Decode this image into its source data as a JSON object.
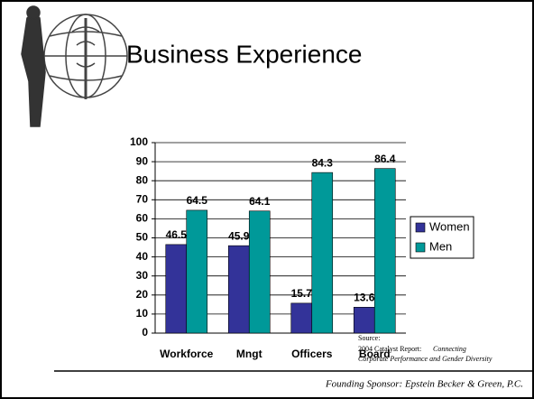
{
  "chart_data": {
    "type": "bar",
    "title": "Business Experience",
    "categories": [
      "Workforce",
      "Mngt",
      "Officers",
      "Board"
    ],
    "series": [
      {
        "name": "Women",
        "color": "#333399",
        "values": [
          46.5,
          45.9,
          15.7,
          13.6
        ]
      },
      {
        "name": "Men",
        "color": "#009999",
        "values": [
          64.5,
          64.1,
          84.3,
          86.4
        ]
      }
    ],
    "ylim": [
      0,
      100
    ],
    "yticks": [
      0,
      10,
      20,
      30,
      40,
      50,
      60,
      70,
      80,
      90,
      100
    ],
    "grid": true,
    "legend": "right",
    "source": [
      "Source:",
      "2004 Catalyst Report:",
      "Connecting",
      "Corporate Performance and Gender Diversity"
    ],
    "footer": "Founding Sponsor:  Epstein Becker & Green, P.C."
  }
}
